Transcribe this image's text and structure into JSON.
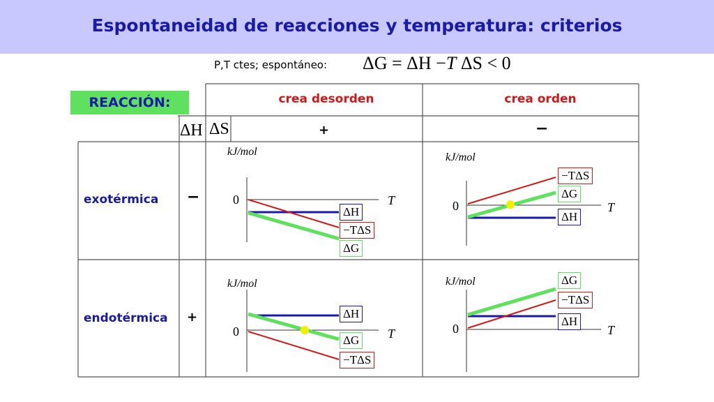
{
  "title": "Espontaneidad de reacciones y temperatura: criterios",
  "condition_text": "P,T ctes; espontáneo:",
  "formula": {
    "dG": "ΔG",
    "eq": "=",
    "dH": "ΔH",
    "minus": "−",
    "T": "T",
    "dS": "ΔS",
    "lt": "<",
    "zero": "0"
  },
  "reaccion_label": "REACCIÓN:",
  "columns": {
    "dH_header": "ΔH",
    "dS_header": "ΔS",
    "desorden": "crea desorden",
    "orden": "crea orden",
    "dS_pos": "+",
    "dS_neg": "−"
  },
  "rows": {
    "exo": "exotérmica",
    "exo_sign": "−",
    "endo": "endotérmica",
    "endo_sign": "+"
  },
  "axis": {
    "unit": "kJ/mol",
    "zero": "0",
    "T": "T"
  },
  "series_labels": {
    "dH": "ΔH",
    "dG": "ΔG",
    "mTdS": "−TΔS"
  },
  "colors": {
    "banner": "#c8c8ff",
    "title": "#1a1aa8",
    "enthalpy": "#1a1aa8",
    "entropy": "#d01818",
    "gibbs": "#5fe05f",
    "crossing": "#f0f000",
    "badge": "#5fe05f"
  }
}
